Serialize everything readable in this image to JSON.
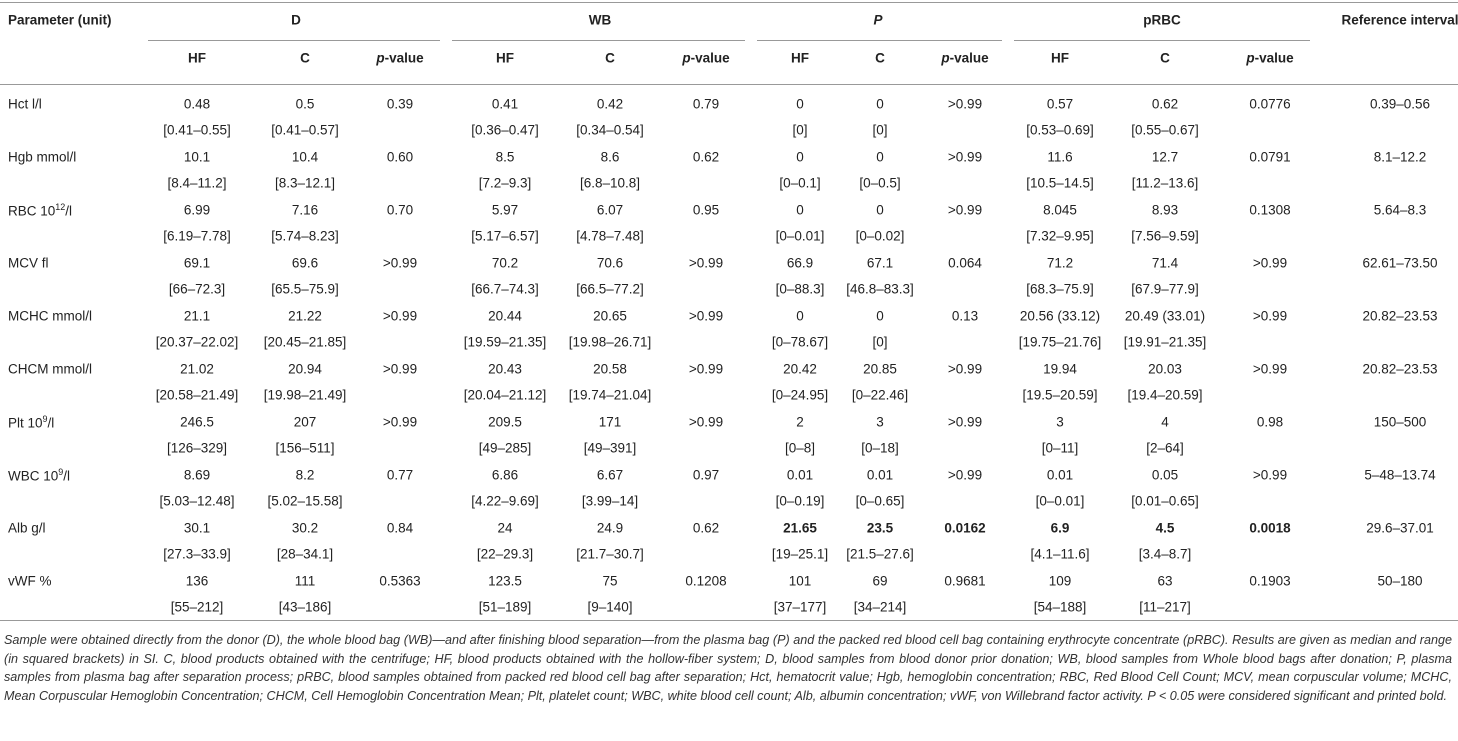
{
  "header": {
    "parameter": "Parameter (unit)",
    "groups": [
      "D",
      "WB",
      "P",
      "pRBC"
    ],
    "reference": "Reference interval",
    "subheaders": [
      "HF",
      "C",
      [
        "p",
        "-value"
      ]
    ]
  },
  "rows": [
    {
      "parameter": [
        "Hct l/l"
      ],
      "median": [
        "0.48",
        "0.5",
        "0.39",
        "0.41",
        "0.42",
        "0.79",
        "0",
        "0",
        ">0.99",
        "0.57",
        "0.62",
        "0.0776",
        "0.39–0.56"
      ],
      "range": [
        "[0.41–0.55]",
        "[0.41–0.57]",
        "[0.36–0.47]",
        "[0.34–0.54]",
        "[0]",
        "[0]",
        "[0.53–0.69]",
        "[0.55–0.67]"
      ]
    },
    {
      "parameter": [
        "Hgb mmol/l"
      ],
      "median": [
        "10.1",
        "10.4",
        "0.60",
        "8.5",
        "8.6",
        "0.62",
        "0",
        "0",
        ">0.99",
        "11.6",
        "12.7",
        "0.0791",
        "8.1–12.2"
      ],
      "range": [
        "[8.4–11.2]",
        "[8.3–12.1]",
        "[7.2–9.3]",
        "[6.8–10.8]",
        "[0–0.1]",
        "[0–0.5]",
        "[10.5–14.5]",
        "[11.2–13.6]"
      ]
    },
    {
      "parameter": [
        "RBC 10",
        "12",
        "/l"
      ],
      "median": [
        "6.99",
        "7.16",
        "0.70",
        "5.97",
        "6.07",
        "0.95",
        "0",
        "0",
        ">0.99",
        "8.045",
        "8.93",
        "0.1308",
        "5.64–8.3"
      ],
      "range": [
        "[6.19–7.78]",
        "[5.74–8.23]",
        "[5.17–6.57]",
        "[4.78–7.48]",
        "[0–0.01]",
        "[0–0.02]",
        "[7.32–9.95]",
        "[7.56–9.59]"
      ]
    },
    {
      "parameter": [
        "MCV fl"
      ],
      "median": [
        "69.1",
        "69.6",
        ">0.99",
        "70.2",
        "70.6",
        ">0.99",
        "66.9",
        "67.1",
        "0.064",
        "71.2",
        "71.4",
        ">0.99",
        "62.61–73.50"
      ],
      "range": [
        "[66–72.3]",
        "[65.5–75.9]",
        "[66.7–74.3]",
        "[66.5–77.2]",
        "[0–88.3]",
        "[46.8–83.3]",
        "[68.3–75.9]",
        "[67.9–77.9]"
      ]
    },
    {
      "parameter": [
        "MCHC mmol/l"
      ],
      "median": [
        "21.1",
        "21.22",
        ">0.99",
        "20.44",
        "20.65",
        ">0.99",
        "0",
        "0",
        "0.13",
        "20.56 (33.12)",
        "20.49 (33.01)",
        ">0.99",
        "20.82–23.53"
      ],
      "range": [
        "[20.37–22.02]",
        "[20.45–21.85]",
        "[19.59–21.35]",
        "[19.98–26.71]",
        "[0–78.67]",
        "[0]",
        "[19.75–21.76]",
        "[19.91–21.35]"
      ]
    },
    {
      "parameter": [
        "CHCM mmol/l"
      ],
      "median": [
        "21.02",
        "20.94",
        ">0.99",
        "20.43",
        "20.58",
        ">0.99",
        "20.42",
        "20.85",
        ">0.99",
        "19.94",
        "20.03",
        ">0.99",
        "20.82–23.53"
      ],
      "range": [
        "[20.58–21.49]",
        "[19.98–21.49]",
        "[20.04–21.12]",
        "[19.74–21.04]",
        "[0–24.95]",
        "[0–22.46]",
        "[19.5–20.59]",
        "[19.4–20.59]"
      ]
    },
    {
      "parameter": [
        "Plt 10",
        "9",
        "/l"
      ],
      "median": [
        "246.5",
        "207",
        ">0.99",
        "209.5",
        "171",
        ">0.99",
        "2",
        "3",
        ">0.99",
        "3",
        "4",
        "0.98",
        "150–500"
      ],
      "range": [
        "[126–329]",
        "[156–511]",
        "[49–285]",
        "[49–391]",
        "[0–8]",
        "[0–18]",
        "[0–11]",
        "[2–64]"
      ]
    },
    {
      "parameter": [
        "WBC 10",
        "9",
        "/l"
      ],
      "median": [
        "8.69",
        "8.2",
        "0.77",
        "6.86",
        "6.67",
        "0.97",
        "0.01",
        "0.01",
        ">0.99",
        "0.01",
        "0.05",
        ">0.99",
        "5–48–13.74"
      ],
      "range": [
        "[5.03–12.48]",
        "[5.02–15.58]",
        "[4.22–9.69]",
        "[3.99–14]",
        "[0–0.19]",
        "[0–0.65]",
        "[0–0.01]",
        "[0.01–0.65]"
      ]
    },
    {
      "parameter": [
        "Alb g/l"
      ],
      "median": [
        "30.1",
        "30.2",
        "0.84",
        "24",
        "24.9",
        "0.62",
        "21.65",
        "23.5",
        "0.0162",
        "6.9",
        "4.5",
        "0.0018",
        "29.6–37.01"
      ],
      "range": [
        "[27.3–33.9]",
        "[28–34.1]",
        "[22–29.3]",
        "[21.7–30.7]",
        "[19–25.1]",
        "[21.5–27.6]",
        "[4.1–11.6]",
        "[3.4–8.7]"
      ],
      "bold": [
        false,
        false,
        false,
        false,
        false,
        false,
        true,
        true,
        true,
        true,
        true,
        true,
        false
      ]
    },
    {
      "parameter": [
        "vWF %"
      ],
      "median": [
        "136",
        "111",
        "0.5363",
        "123.5",
        "75",
        "0.1208",
        "101",
        "69",
        "0.9681",
        "109",
        "63",
        "0.1903",
        "50–180"
      ],
      "range": [
        "[55–212]",
        "[43–186]",
        "[51–189]",
        "[9–140]",
        "[37–177]",
        "[34–214]",
        "[54–188]",
        "[11–217]"
      ]
    }
  ],
  "footnote": "Sample were obtained directly from the donor (D), the whole blood bag (WB)—and after finishing blood separation—from the plasma bag (P) and the packed red blood cell bag containing erythrocyte concentrate (pRBC). Results are given as median and range (in squared brackets) in SI. C, blood products obtained with the centrifuge; HF, blood products obtained with the hollow-fiber system; D, blood samples from blood donor prior donation; WB, blood samples from Whole blood bags after donation; P, plasma samples from plasma bag after separation process; pRBC, blood samples obtained from packed red blood cell bag after separation; Hct, hematocrit value; Hgb, hemoglobin concentration; RBC, Red Blood Cell Count; MCV, mean corpuscular volume; MCHC, Mean Corpuscular Hemoglobin Concentration; CHCM, Cell Hemoglobin Concentration Mean; Plt, platelet count; WBC, white blood cell count; Alb, albumin concentration; vWF, von Willebrand factor activity. P < 0.05 were considered significant and printed bold."
}
